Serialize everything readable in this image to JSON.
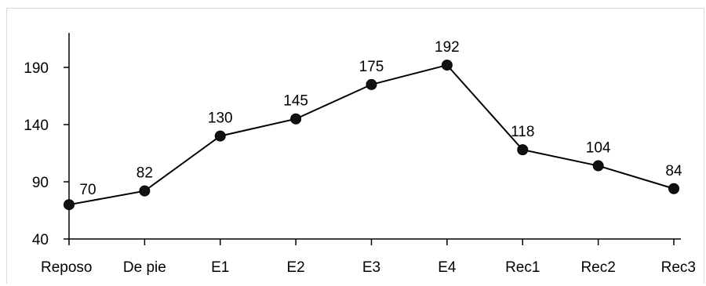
{
  "chart_data": {
    "type": "line",
    "categories": [
      "Reposo",
      "De pie",
      "E1",
      "E2",
      "E3",
      "E4",
      "Rec1",
      "Rec2",
      "Rec3"
    ],
    "series": [
      {
        "values": [
          70,
          82,
          130,
          145,
          175,
          192,
          118,
          104,
          84
        ],
        "color": "#000000",
        "marker": "circle"
      }
    ],
    "data_labels": [
      "70",
      "82",
      "130",
      "145",
      "175",
      "192",
      "118",
      "104",
      "84"
    ],
    "y_ticks": [
      40,
      90,
      140,
      190
    ],
    "y_tick_labels": [
      "40",
      "90",
      "140",
      "190"
    ],
    "ylim": [
      40,
      200
    ],
    "grid": false,
    "legend": "none"
  }
}
